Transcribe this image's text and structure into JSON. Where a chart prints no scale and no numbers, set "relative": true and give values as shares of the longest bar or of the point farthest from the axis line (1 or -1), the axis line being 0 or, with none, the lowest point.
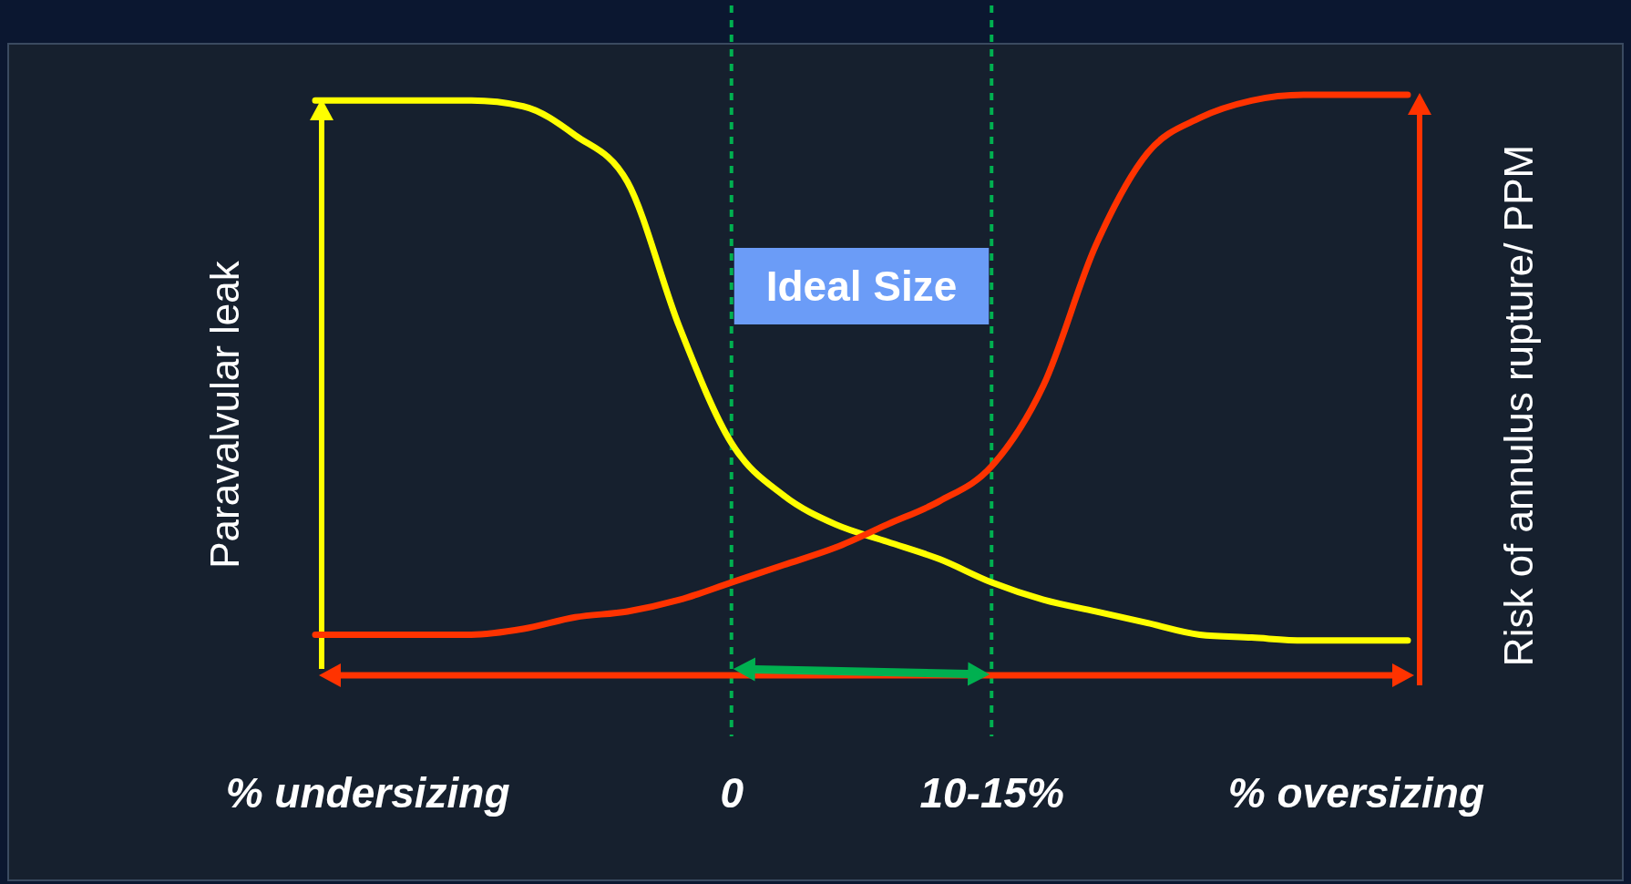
{
  "chart_data": {
    "type": "line",
    "relative": true,
    "ylabel": "Paravalvular leak",
    "y2label": "Risk of annulus rupture/ PPM",
    "categories": [
      null,
      "% undersizing",
      null,
      null,
      null,
      null,
      null,
      null,
      "0",
      null,
      null,
      null,
      null,
      "10-15%",
      null,
      null,
      null,
      null,
      null,
      null,
      "% oversizing",
      null
    ],
    "series": [
      {
        "color": "#ffff00",
        "values": [
          0.99,
          0.99,
          0.99,
          0.99,
          0.98,
          0.93,
          0.85,
          0.6,
          0.4,
          0.31,
          0.26,
          0.23,
          0.2,
          0.16,
          0.13,
          0.11,
          0.09,
          0.07,
          0.065,
          0.06,
          0.06,
          0.06
        ]
      },
      {
        "color": "#ff3300",
        "values": [
          0.07,
          0.07,
          0.07,
          0.07,
          0.08,
          0.1,
          0.11,
          0.13,
          0.16,
          0.19,
          0.22,
          0.26,
          0.3,
          0.36,
          0.5,
          0.74,
          0.9,
          0.96,
          0.99,
          1.0,
          1.0,
          1.0
        ]
      }
    ],
    "ref_lines": [
      {
        "axis": "x",
        "value": "0",
        "color": "#00b050",
        "line_style": "dashed"
      },
      {
        "axis": "x",
        "value": "10-15%",
        "color": "#00b050",
        "line_style": "dashed"
      }
    ],
    "annotations": [
      "Ideal Size"
    ]
  }
}
